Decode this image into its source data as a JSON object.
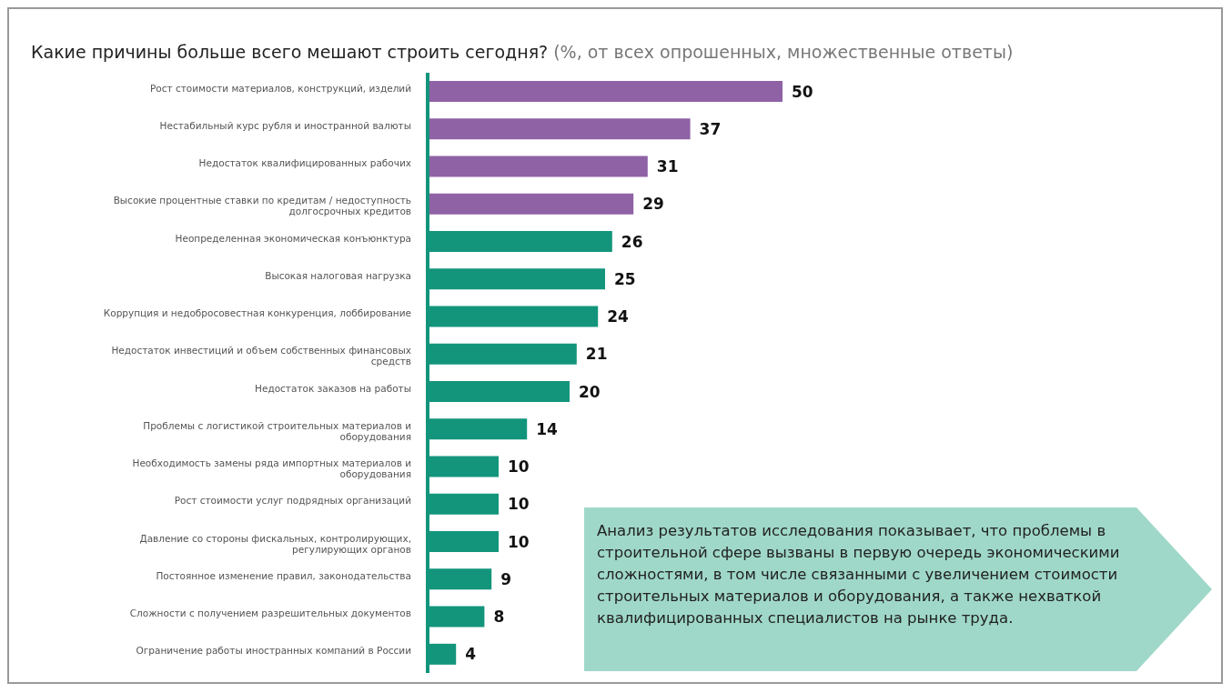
{
  "chart_data": {
    "type": "bar",
    "orientation": "horizontal",
    "title": "Какие причины больше всего мешают строить сегодня?",
    "subtitle": "(%, от всех опрошенных, множественные ответы)",
    "categories": [
      "Рост стоимости материалов, конструкций, изделий",
      "Нестабильный курс рубля и иностранной валюты",
      "Недостаток квалифицированных рабочих",
      "Высокие процентные ставки по кредитам / недоступность долгосрочных кредитов",
      "Неопределенная экономическая конъюнктура",
      "Высокая налоговая нагрузка",
      "Коррупция и недобросовестная конкуренция, лоббирование",
      "Недостаток инвестиций и объем собственных финансовых средств",
      "Недостаток заказов на работы",
      "Проблемы с логистикой строительных материалов и оборудования",
      "Необходимость замены ряда импортных материалов и оборудования",
      "Рост стоимости услуг подрядных организаций",
      "Давление со стороны фискальных, контролирующих, регулирующих органов",
      "Постоянное изменение правил, законодательства",
      "Сложности с получением разрешительных документов",
      "Ограничение работы иностранных компаний в России"
    ],
    "values": [
      50,
      37,
      31,
      29,
      26,
      25,
      24,
      21,
      20,
      14,
      10,
      10,
      10,
      9,
      8,
      4
    ],
    "colors": [
      "#8f62a6",
      "#8f62a6",
      "#8f62a6",
      "#8f62a6",
      "#13957c",
      "#13957c",
      "#13957c",
      "#13957c",
      "#13957c",
      "#13957c",
      "#13957c",
      "#13957c",
      "#13957c",
      "#13957c",
      "#13957c",
      "#13957c"
    ],
    "data_labels": true,
    "grid": false,
    "legend": false,
    "annotations": [
      "Анализ результатов исследования показывает, что проблемы в строительной сфере вызваны в первую очередь экономическими сложностями, в том числе связанными с увеличением стоимости строительных материалов и оборудования, а также нехваткой квалифицированных специалистов на рынке труда."
    ]
  }
}
